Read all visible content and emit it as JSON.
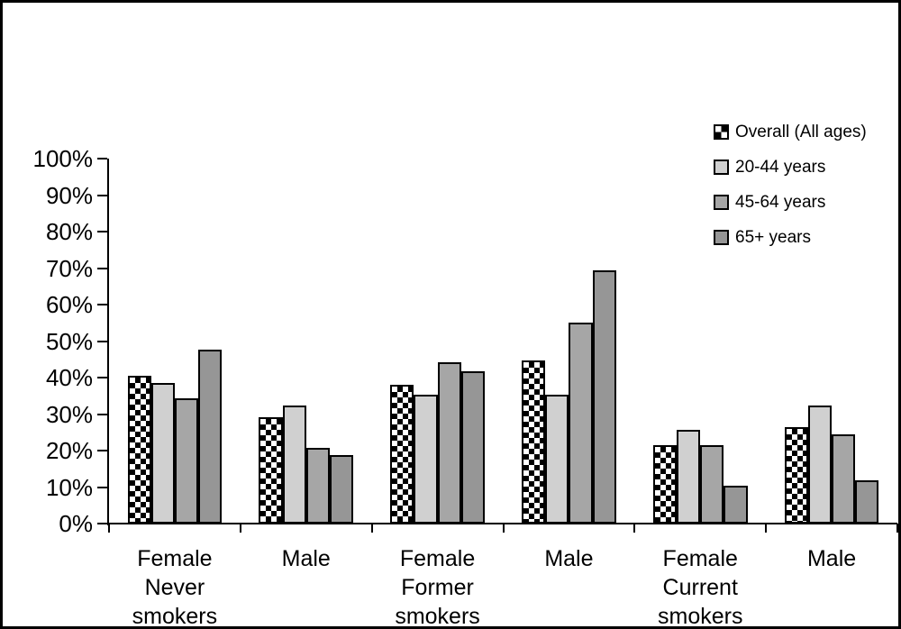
{
  "figure": {
    "background_color": "#ffffff",
    "border_color": "#000000"
  },
  "chart_data": {
    "type": "bar",
    "title": "",
    "xlabel": "",
    "ylabel": "",
    "grid": false,
    "legend_position": "top-right",
    "ylim": [
      0,
      100
    ],
    "ytick_step": 10,
    "ytick_labels": [
      "0%",
      "10%",
      "20%",
      "30%",
      "40%",
      "50%",
      "60%",
      "70%",
      "80%",
      "90%",
      "100%"
    ],
    "categories": [
      {
        "lines": [
          "Female",
          "Never smokers"
        ]
      },
      {
        "lines": [
          "Male"
        ]
      },
      {
        "lines": [
          "Female",
          "Former smokers"
        ]
      },
      {
        "lines": [
          "Male"
        ]
      },
      {
        "lines": [
          "Female",
          "Current",
          "smokers"
        ]
      },
      {
        "lines": [
          "Male"
        ]
      }
    ],
    "series": [
      {
        "name": "Overall (All ages)",
        "style": "checker",
        "color": "#000000",
        "values": [
          40.6,
          29.2,
          38.1,
          44.8,
          21.4,
          26.4
        ]
      },
      {
        "name": "20-44 years",
        "style": "solid",
        "color": "#d0d0d0",
        "values": [
          38.6,
          32.4,
          35.3,
          35.3,
          25.8,
          32.4
        ]
      },
      {
        "name": "45-64 years",
        "style": "solid",
        "color": "#a6a6a6",
        "values": [
          34.3,
          20.7,
          44.3,
          55.1,
          21.5,
          24.4
        ]
      },
      {
        "name": "65+ years",
        "style": "solid",
        "color": "#969696",
        "values": [
          47.6,
          18.7,
          41.8,
          69.5,
          10.4,
          11.9
        ]
      }
    ]
  }
}
